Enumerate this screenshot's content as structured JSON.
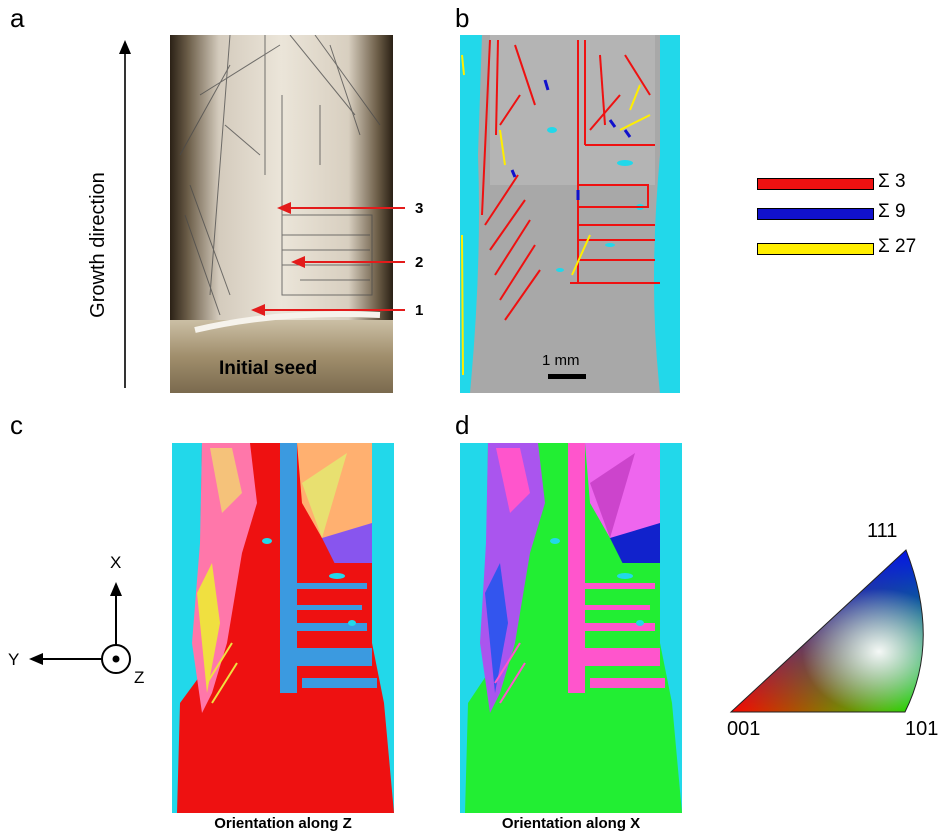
{
  "panels": {
    "a": {
      "letter": "a",
      "growth_label": "Growth direction",
      "seed_label": "Initial seed",
      "arrow_labels": [
        "3",
        "2",
        "1"
      ]
    },
    "b": {
      "letter": "b",
      "scale_bar": "1 mm"
    },
    "c": {
      "letter": "c",
      "caption": "Orientation along Z"
    },
    "d": {
      "letter": "d",
      "caption": "Orientation along X"
    }
  },
  "legend": {
    "items": [
      {
        "label": "Σ 3",
        "color": "#ee1111"
      },
      {
        "label": "Σ 9",
        "color": "#1111cc"
      },
      {
        "label": "Σ 27",
        "color": "#ffee00"
      }
    ]
  },
  "axes": {
    "x": "X",
    "y": "Y",
    "z": "Z"
  },
  "triangle": {
    "top": "111",
    "left": "001",
    "right": "101"
  }
}
